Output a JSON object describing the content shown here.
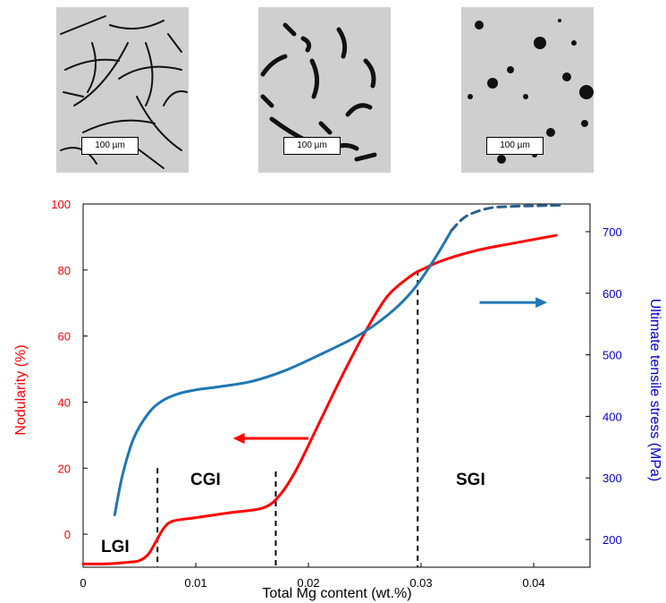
{
  "micrographs": [
    {
      "id": "lgi",
      "scale_label": "100 µm"
    },
    {
      "id": "cgi",
      "scale_label": "100 µm"
    },
    {
      "id": "sgi",
      "scale_label": "100 µm"
    }
  ],
  "chart_data": {
    "type": "line",
    "xlabel": "Total Mg content (wt.%)",
    "ylabel_left": "Nodularity (%)",
    "ylabel_right": "Ultimate tensile stress (MPa)",
    "xlim": [
      0,
      0.045
    ],
    "ylim_left": [
      -10,
      100
    ],
    "ylim_right": [
      155,
      745
    ],
    "x_ticks": [
      0,
      0.01,
      0.02,
      0.03,
      0.04
    ],
    "x_tick_labels": [
      "0",
      "0.01",
      "0.02",
      "0.03",
      "0.04"
    ],
    "y_left_ticks": [
      0,
      20,
      40,
      60,
      80,
      100
    ],
    "y_right_ticks": [
      200,
      300,
      400,
      500,
      600,
      700
    ],
    "grid": false,
    "colors": {
      "left_axis": "#ff0000",
      "right_axis": "#0000cc",
      "nodularity": "#ff0000",
      "tensile": "#1f77b4",
      "tensile_dashed": "#2b5f8f"
    },
    "series": [
      {
        "name": "",
        "axis": "left",
        "x": [
          0.0,
          0.002,
          0.004,
          0.005,
          0.0058,
          0.0065,
          0.0072,
          0.008,
          0.01,
          0.013,
          0.016,
          0.0175,
          0.019,
          0.021,
          0.023,
          0.025,
          0.027,
          0.029,
          0.03,
          0.032,
          0.035,
          0.038,
          0.042
        ],
        "y": [
          -9,
          -9,
          -8.5,
          -8,
          -6,
          -2,
          2,
          4,
          5,
          6.5,
          8,
          12,
          20,
          34,
          48,
          61,
          72,
          78,
          80,
          83,
          86,
          88,
          90.5
        ]
      },
      {
        "name": "",
        "axis": "right",
        "x": [
          0.0028,
          0.0035,
          0.0045,
          0.0058,
          0.007,
          0.0085,
          0.01,
          0.012,
          0.015,
          0.018,
          0.021,
          0.024,
          0.026,
          0.028,
          0.0295,
          0.031,
          0.032,
          0.0327
        ],
        "y": [
          240,
          305,
          365,
          405,
          425,
          437,
          443,
          448,
          457,
          475,
          500,
          527,
          550,
          580,
          610,
          650,
          680,
          702
        ]
      },
      {
        "name": "",
        "axis": "right",
        "style": "dashed",
        "x": [
          0.0327,
          0.034,
          0.036,
          0.038,
          0.04,
          0.0425
        ],
        "y": [
          702,
          725,
          738,
          741,
          742,
          743
        ]
      }
    ],
    "boundaries": [
      {
        "x": 0.0066,
        "y_top": 20
      },
      {
        "x": 0.0171,
        "y_top": 19
      },
      {
        "x": 0.0297,
        "y_top": 80
      }
    ],
    "regions": [
      "LGI",
      "CGI",
      "SGI"
    ],
    "annotations": [
      {
        "type": "arrow",
        "direction": "left",
        "axis": "left",
        "color": "#ff0000",
        "x_from": 0.02,
        "x_to": 0.0133,
        "y": 29
      },
      {
        "type": "arrow",
        "direction": "right",
        "axis": "right",
        "color": "#1f77b4",
        "x_from": 0.0352,
        "x_to": 0.0412,
        "y": 585
      }
    ]
  }
}
